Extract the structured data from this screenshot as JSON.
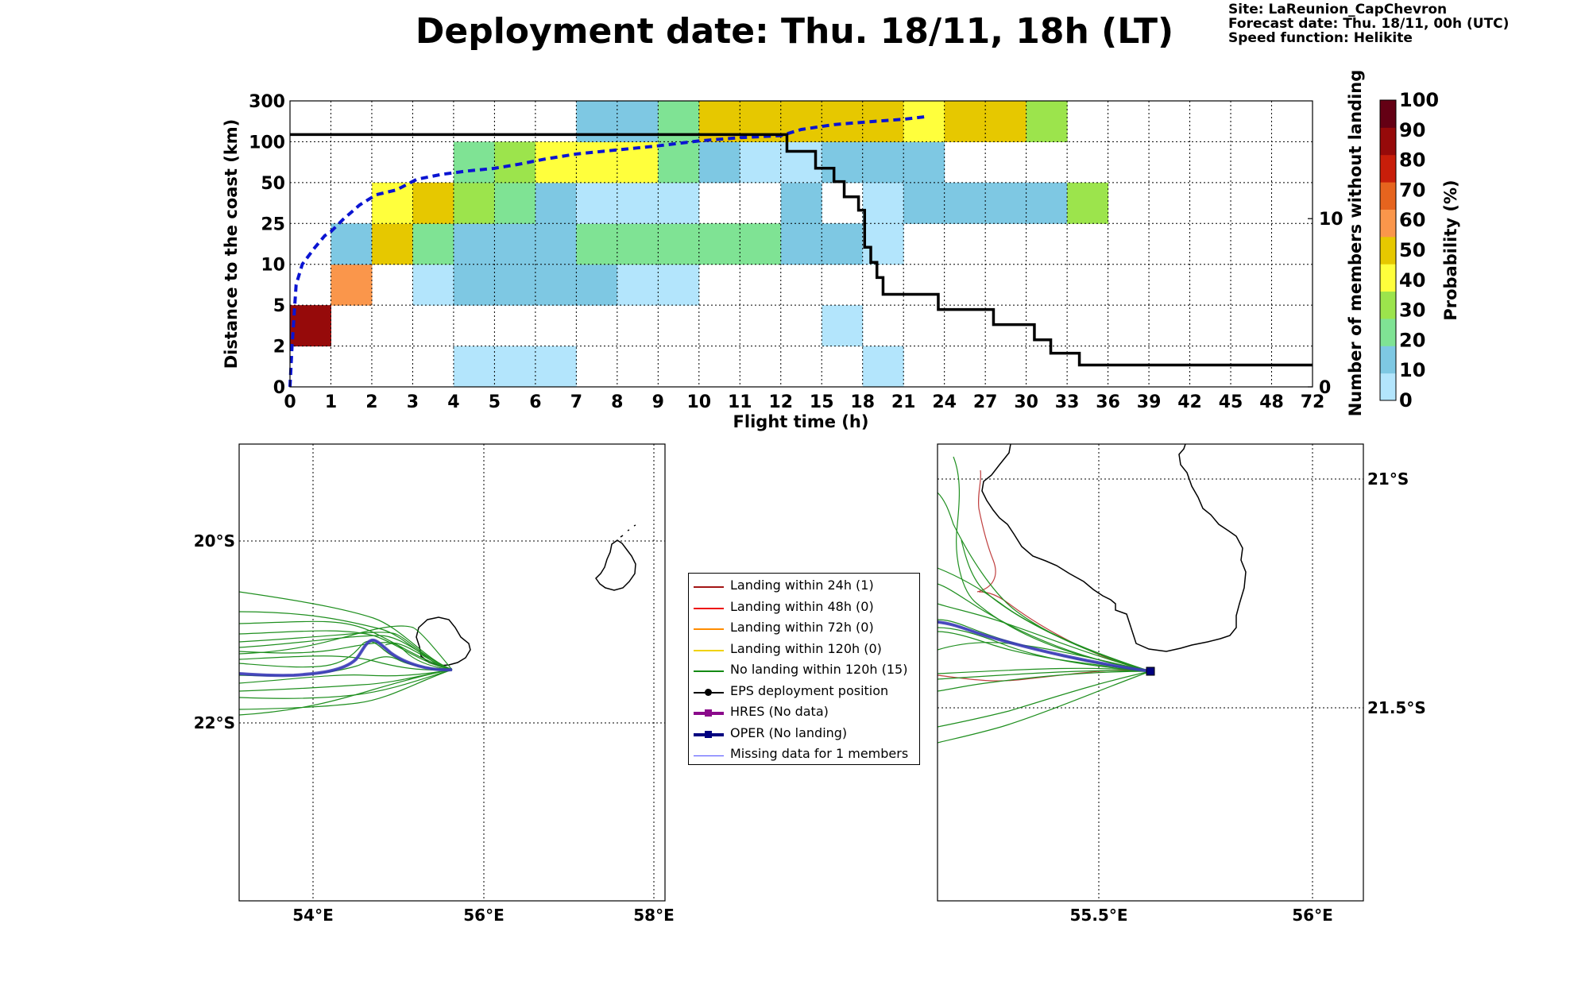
{
  "header": {
    "title": "Deployment date: Thu. 18/11, 18h (LT)",
    "site": "Site: LaReunion_CapChevron",
    "forecast": "Forecast date: Thu. 18/11, 00h (UTC)",
    "speed": "Speed function: Helikite"
  },
  "chart_data": [
    {
      "type": "heatmap",
      "xlabel": "Flight time (h)",
      "ylabel": "Distance to the coast (km)",
      "y2label": "Number of members without landing",
      "colorbar_label": "Probability (%)",
      "x_tick_labels": [
        "0",
        "1",
        "2",
        "3",
        "4",
        "5",
        "6",
        "7",
        "8",
        "9",
        "10",
        "11",
        "12",
        "15",
        "18",
        "21",
        "24",
        "27",
        "30",
        "33",
        "36",
        "39",
        "42",
        "45",
        "48",
        "72"
      ],
      "y_tick_labels": [
        "0",
        "2",
        "5",
        "10",
        "25",
        "50",
        "100",
        "300"
      ],
      "y2_tick_labels": [
        "0",
        "10"
      ],
      "y2lim": [
        0,
        17
      ],
      "grid": true,
      "colorbar_ticks": [
        "0",
        "10",
        "20",
        "30",
        "40",
        "50",
        "60",
        "70",
        "80",
        "90",
        "100"
      ],
      "colorbar_colors": [
        "#b3e5fc",
        "#7ec8e3",
        "#7fe394",
        "#9ce44c",
        "#ffff3c",
        "#e6c800",
        "#fa964b",
        "#e6641e",
        "#c81e0a",
        "#960a0a",
        "#640014"
      ],
      "cells": [
        [
          0,
          1,
          90
        ],
        [
          1,
          2,
          60
        ],
        [
          1,
          3,
          10
        ],
        [
          2,
          3,
          50
        ],
        [
          2,
          4,
          40
        ],
        [
          3,
          2,
          0
        ],
        [
          3,
          3,
          20
        ],
        [
          3,
          4,
          50
        ],
        [
          4,
          0,
          0
        ],
        [
          4,
          2,
          10
        ],
        [
          4,
          3,
          10
        ],
        [
          4,
          4,
          30
        ],
        [
          4,
          5,
          20
        ],
        [
          5,
          0,
          0
        ],
        [
          5,
          2,
          10
        ],
        [
          5,
          3,
          10
        ],
        [
          5,
          4,
          20
        ],
        [
          5,
          5,
          30
        ],
        [
          6,
          0,
          0
        ],
        [
          6,
          2,
          10
        ],
        [
          6,
          3,
          10
        ],
        [
          6,
          4,
          10
        ],
        [
          6,
          5,
          40
        ],
        [
          7,
          2,
          10
        ],
        [
          7,
          3,
          20
        ],
        [
          7,
          4,
          0
        ],
        [
          7,
          5,
          40
        ],
        [
          7,
          6,
          10
        ],
        [
          8,
          2,
          0
        ],
        [
          8,
          3,
          20
        ],
        [
          8,
          4,
          0
        ],
        [
          8,
          5,
          40
        ],
        [
          8,
          6,
          10
        ],
        [
          9,
          2,
          0
        ],
        [
          9,
          3,
          20
        ],
        [
          9,
          4,
          0
        ],
        [
          9,
          5,
          20
        ],
        [
          9,
          6,
          20
        ],
        [
          10,
          3,
          20
        ],
        [
          10,
          5,
          10
        ],
        [
          10,
          6,
          50
        ],
        [
          11,
          3,
          20
        ],
        [
          11,
          5,
          0
        ],
        [
          11,
          6,
          50
        ],
        [
          12,
          3,
          10
        ],
        [
          12,
          4,
          10
        ],
        [
          12,
          5,
          0
        ],
        [
          12,
          6,
          50
        ],
        [
          13,
          1,
          0
        ],
        [
          13,
          3,
          10
        ],
        [
          13,
          5,
          10
        ],
        [
          13,
          6,
          50
        ],
        [
          14,
          0,
          0
        ],
        [
          14,
          3,
          0
        ],
        [
          14,
          4,
          0
        ],
        [
          14,
          5,
          10
        ],
        [
          14,
          6,
          50
        ],
        [
          15,
          4,
          10
        ],
        [
          15,
          5,
          10
        ],
        [
          15,
          6,
          40
        ],
        [
          16,
          4,
          10
        ],
        [
          16,
          6,
          50
        ],
        [
          17,
          4,
          10
        ],
        [
          17,
          6,
          50
        ],
        [
          18,
          4,
          10
        ],
        [
          18,
          6,
          30
        ],
        [
          19,
          4,
          30
        ]
      ],
      "series": [
        {
          "name": "",
          "style": "dashed-blue",
          "color": "#0a14d2",
          "points": [
            [
              0,
              0
            ],
            [
              0.05,
              1
            ],
            [
              0.15,
              2.5
            ],
            [
              0.3,
              3.0
            ],
            [
              0.6,
              3.4
            ],
            [
              0.85,
              3.7
            ],
            [
              1.0,
              3.8
            ],
            [
              1.3,
              4.1
            ],
            [
              1.7,
              4.45
            ],
            [
              2.1,
              4.7
            ],
            [
              2.6,
              4.82
            ],
            [
              3.1,
              5.08
            ],
            [
              3.7,
              5.2
            ],
            [
              4.3,
              5.28
            ],
            [
              5.0,
              5.35
            ],
            [
              5.6,
              5.45
            ],
            [
              6.2,
              5.57
            ],
            [
              7.0,
              5.7
            ],
            [
              8.0,
              5.8
            ],
            [
              9.0,
              5.9
            ],
            [
              10.0,
              6.02
            ],
            [
              11.0,
              6.1
            ],
            [
              12.0,
              6.15
            ],
            [
              12.5,
              6.3
            ],
            [
              13.3,
              6.42
            ],
            [
              14.3,
              6.5
            ],
            [
              15.0,
              6.55
            ],
            [
              15.6,
              6.62
            ]
          ]
        },
        {
          "name": "Number of members without landing",
          "style": "step-black",
          "color": "#000000",
          "points": [
            [
              0,
              15
            ],
            [
              12.15,
              15
            ],
            [
              12.15,
              14
            ],
            [
              12.85,
              14
            ],
            [
              12.85,
              13
            ],
            [
              13.3,
              13
            ],
            [
              13.3,
              12.2
            ],
            [
              13.55,
              12.2
            ],
            [
              13.55,
              11.3
            ],
            [
              13.9,
              11.3
            ],
            [
              13.9,
              10.5
            ],
            [
              14.05,
              10.5
            ],
            [
              14.05,
              8.3
            ],
            [
              14.2,
              8.3
            ],
            [
              14.2,
              7.4
            ],
            [
              14.35,
              7.4
            ],
            [
              14.35,
              6.5
            ],
            [
              14.5,
              6.5
            ],
            [
              14.5,
              5.5
            ],
            [
              15.85,
              5.5
            ],
            [
              15.85,
              4.6
            ],
            [
              17.2,
              4.6
            ],
            [
              17.2,
              3.7
            ],
            [
              18.2,
              3.7
            ],
            [
              18.2,
              2.8
            ],
            [
              18.6,
              2.8
            ],
            [
              18.6,
              2.0
            ],
            [
              19.3,
              2.0
            ],
            [
              19.3,
              1.3
            ],
            [
              25,
              1.3
            ]
          ]
        }
      ]
    },
    {
      "type": "map",
      "lon_ticks": [
        "54°E",
        "56°E",
        "58°E"
      ],
      "lat_ticks": [
        "20°S",
        "22°S"
      ]
    },
    {
      "type": "map",
      "lon_ticks": [
        "55.5°E",
        "56°E"
      ],
      "lat_ticks": [
        "21°S",
        "21.5°S"
      ]
    }
  ],
  "legend": [
    {
      "label": "Landing within 24h (1)",
      "color": "#a31515",
      "marker": "none",
      "width": 2
    },
    {
      "label": "Landing within 48h (0)",
      "color": "#ee1111",
      "marker": "none",
      "width": 2
    },
    {
      "label": "Landing within 72h (0)",
      "color": "#ff8c00",
      "marker": "none",
      "width": 2
    },
    {
      "label": "Landing within 120h (0)",
      "color": "#f0d200",
      "marker": "none",
      "width": 2
    },
    {
      "label": "No landing within 120h (15)",
      "color": "#138a13",
      "marker": "none",
      "width": 2
    },
    {
      "label": "EPS deployment position",
      "color": "#000000",
      "marker": "circle",
      "width": 2
    },
    {
      "label": "HRES (No data)",
      "color": "#8b0a8b",
      "marker": "square",
      "width": 4
    },
    {
      "label": "OPER (No landing)",
      "color": "#000080",
      "marker": "square",
      "width": 4
    },
    {
      "label": "Missing data for 1 members",
      "color": "#4a4aff",
      "marker": "none",
      "width": 1
    }
  ]
}
